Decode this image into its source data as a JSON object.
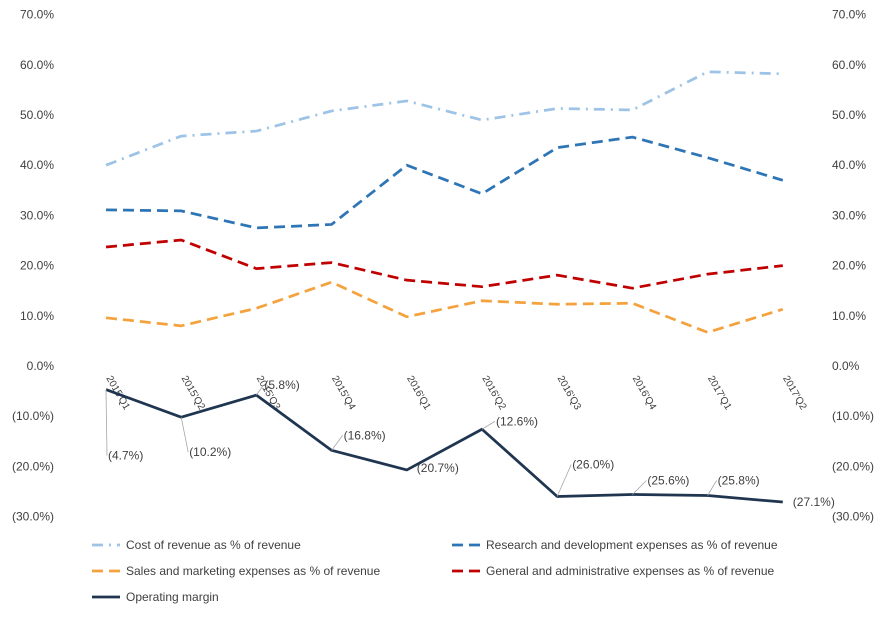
{
  "chart_data": {
    "type": "line",
    "categories": [
      "2015'Q1",
      "2015'Q2",
      "2015'Q3",
      "2015'Q4",
      "2016'Q1",
      "2016'Q2",
      "2016'Q3",
      "2016'Q4",
      "2017'Q1",
      "2017'Q2"
    ],
    "y_ticks": [
      70,
      60,
      50,
      40,
      30,
      20,
      10,
      0,
      -10,
      -20,
      -30
    ],
    "y_tick_labels": [
      "70.0%",
      "60.0%",
      "50.0%",
      "40.0%",
      "30.0%",
      "20.0%",
      "10.0%",
      "0.0%",
      "(10.0%)",
      "(20.0%)",
      "(30.0%)"
    ],
    "ylim": [
      -30,
      70
    ],
    "grid": false,
    "legend_position": "bottom",
    "series": [
      {
        "name": "Cost of revenue as % of revenue",
        "color": "#9dc3e6",
        "dash": "dashdot",
        "values": [
          40.0,
          45.8,
          46.8,
          50.8,
          52.8,
          49.0,
          51.3,
          51.0,
          58.6,
          58.2
        ]
      },
      {
        "name": "Research and development expenses as % of revenue",
        "color": "#2e75b6",
        "dash": "dash",
        "values": [
          31.1,
          30.9,
          27.5,
          28.2,
          40.0,
          34.3,
          43.5,
          45.6,
          41.5,
          37.0
        ]
      },
      {
        "name": "Sales and marketing expenses as % of revenue",
        "color": "#f4a23d",
        "dash": "dash",
        "values": [
          9.6,
          8.0,
          11.5,
          16.7,
          9.8,
          13.0,
          12.3,
          12.5,
          6.7,
          11.3
        ]
      },
      {
        "name": "General and administrative expenses as % of revenue",
        "color": "#c00000",
        "dash": "dash",
        "values": [
          23.7,
          25.1,
          19.4,
          20.6,
          17.1,
          15.8,
          18.1,
          15.5,
          18.3,
          20.0
        ]
      },
      {
        "name": "Operating margin",
        "color": "#1f3550",
        "dash": "solid",
        "values": [
          -4.7,
          -10.2,
          -5.8,
          -16.8,
          -20.7,
          -12.6,
          -26.0,
          -25.6,
          -25.8,
          -27.1
        ],
        "data_labels": [
          "(4.7%)",
          "(10.2%)",
          "(5.8%)",
          "(16.8%)",
          "(20.7%)",
          "(12.6%)",
          "(26.0%)",
          "(25.6%)",
          "(25.8%)",
          "(27.1%)"
        ]
      }
    ]
  }
}
